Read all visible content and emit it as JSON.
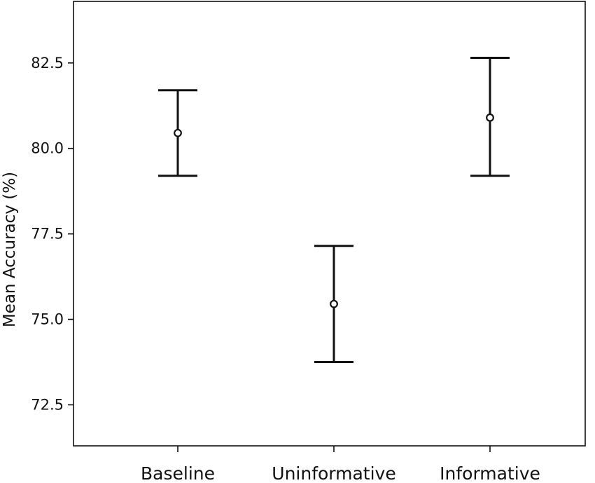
{
  "chart_data": {
    "type": "scatter",
    "subtype": "error-bar",
    "title": "",
    "xlabel": "",
    "ylabel": "Mean Accuracy (%)",
    "ylim": [
      71.3,
      84.3
    ],
    "yticks": [
      "72.5",
      "75.0",
      "77.5",
      "80.0",
      "82.5"
    ],
    "grid": false,
    "categories": [
      "Baseline",
      "Uninformative",
      "Informative"
    ],
    "series": [
      {
        "values": [
          80.45,
          75.45,
          80.9
        ],
        "error_low": [
          79.2,
          73.75,
          79.2
        ],
        "error_high": [
          81.7,
          77.15,
          82.65
        ]
      }
    ],
    "colors": {
      "ink": "#111111",
      "background": "#ffffff"
    }
  }
}
